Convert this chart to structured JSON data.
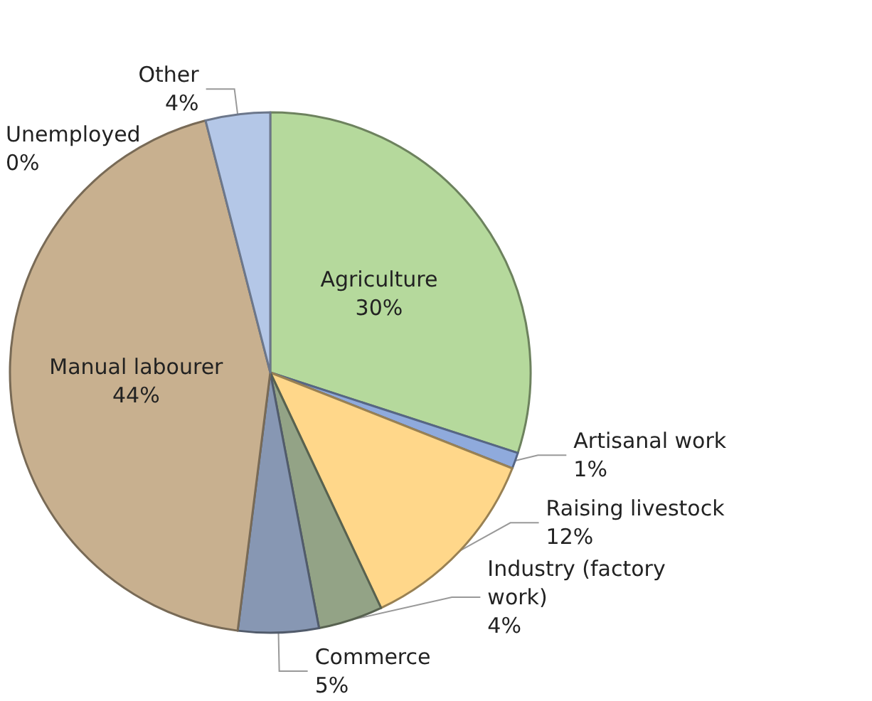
{
  "chart_data": {
    "type": "pie",
    "categories": [
      "Agriculture",
      "Artisanal work",
      "Raising livestock",
      "Industry (factory work)",
      "Commerce",
      "Manual labourer",
      "Unemployed",
      "Other"
    ],
    "values": [
      30,
      1,
      12,
      4,
      5,
      44,
      0,
      4
    ],
    "colors": [
      "#b5d99c",
      "#8faadc",
      "#ffd78a",
      "#93a386",
      "#8797b3",
      "#c8b08f",
      "#a9bde0",
      "#b4c7e7"
    ],
    "value_labels": [
      "30%",
      "1%",
      "12%",
      "4%",
      "5%",
      "44%",
      "0%",
      "4%"
    ]
  }
}
